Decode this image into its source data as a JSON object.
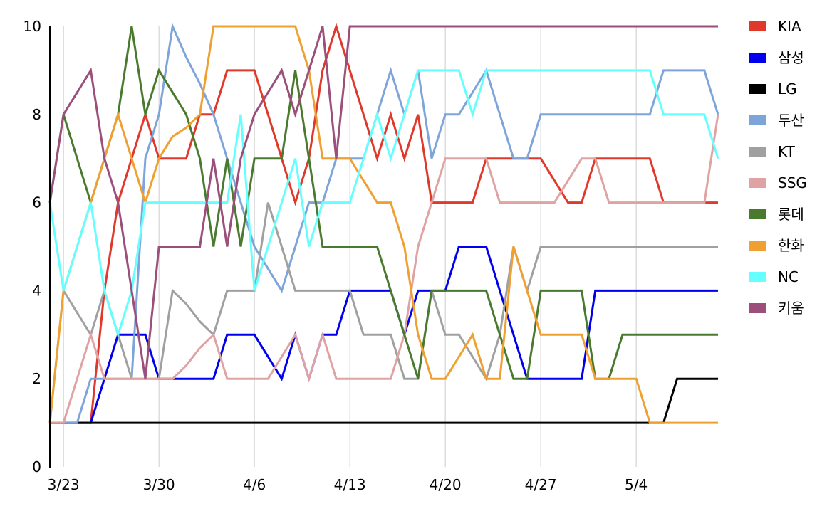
{
  "chart_data": {
    "type": "line",
    "title": "",
    "xlabel": "",
    "ylabel": "",
    "ylim": [
      0,
      10
    ],
    "yticks": [
      0,
      2,
      4,
      6,
      8,
      10
    ],
    "x_tick_labels": [
      "3/23",
      "3/30",
      "4/6",
      "4/13",
      "4/20",
      "4/27",
      "5/4"
    ],
    "x_tick_index": [
      1,
      8,
      15,
      22,
      29,
      36,
      43
    ],
    "x": [
      "3/22",
      "3/23",
      "3/24",
      "3/25",
      "3/26",
      "3/27",
      "3/28",
      "3/29",
      "3/30",
      "3/31",
      "4/1",
      "4/2",
      "4/3",
      "4/4",
      "4/5",
      "4/6",
      "4/7",
      "4/8",
      "4/9",
      "4/10",
      "4/11",
      "4/12",
      "4/13",
      "4/14",
      "4/15",
      "4/16",
      "4/17",
      "4/18",
      "4/19",
      "4/20",
      "4/21",
      "4/22",
      "4/23",
      "4/24",
      "4/25",
      "4/26",
      "4/27",
      "4/28",
      "4/29",
      "4/30",
      "5/1",
      "5/2",
      "5/3",
      "5/4",
      "5/5",
      "5/6",
      "5/7",
      "5/8",
      "5/9",
      "5/10"
    ],
    "grid": "vertical",
    "legend_position": "right",
    "series": [
      {
        "name": "KIA",
        "color": "#e0392b",
        "values": [
          1,
          1,
          1,
          1,
          4,
          6,
          7,
          8,
          7,
          7,
          7,
          8,
          8,
          9,
          9,
          9,
          8,
          7,
          6,
          7,
          9,
          10,
          9,
          8,
          7,
          8,
          7,
          8,
          6,
          6,
          6,
          6,
          7,
          7,
          7,
          7,
          7,
          6.5,
          6,
          6,
          7,
          7,
          7,
          7,
          7,
          6,
          6,
          6,
          6,
          6
        ]
      },
      {
        "name": "삼성",
        "color": "#0000ee",
        "values": [
          1,
          1,
          1,
          1,
          2,
          3,
          3,
          3,
          2,
          2,
          2,
          2,
          2,
          3,
          3,
          3,
          2.5,
          2,
          3,
          2,
          3,
          3,
          4,
          4,
          4,
          4,
          3,
          4,
          4,
          4,
          5,
          5,
          5,
          4,
          3,
          2,
          2,
          2,
          2,
          2,
          4,
          4,
          4,
          4,
          4,
          4,
          4,
          4,
          4,
          4
        ]
      },
      {
        "name": "LG",
        "color": "#000000",
        "values": [
          1,
          1,
          1,
          1,
          1,
          1,
          1,
          1,
          1,
          1,
          1,
          1,
          1,
          1,
          1,
          1,
          1,
          1,
          1,
          1,
          1,
          1,
          1,
          1,
          1,
          1,
          1,
          1,
          1,
          1,
          1,
          1,
          1,
          1,
          1,
          1,
          1,
          1,
          1,
          1,
          1,
          1,
          1,
          1,
          1,
          1,
          2,
          2,
          2,
          2
        ]
      },
      {
        "name": "두산",
        "color": "#7ea5d9",
        "values": [
          1,
          1,
          1,
          2,
          2,
          2,
          2,
          7,
          8,
          10,
          9.3,
          8.7,
          8,
          7,
          6,
          5,
          4.5,
          4,
          5,
          6,
          6,
          7,
          7,
          7,
          8,
          9,
          8,
          9,
          7,
          8,
          8,
          8.5,
          9,
          8,
          7,
          7,
          8,
          8,
          8,
          8,
          8,
          8,
          8,
          8,
          8,
          9,
          9,
          9,
          9,
          8
        ]
      },
      {
        "name": "KT",
        "color": "#a0a0a0",
        "values": [
          1,
          4,
          3.5,
          3,
          4,
          3,
          2,
          2,
          2,
          4,
          3.7,
          3.3,
          3,
          4,
          4,
          4,
          6,
          5,
          4,
          4,
          4,
          4,
          4,
          3,
          3,
          3,
          2,
          2,
          4,
          3,
          3,
          2.5,
          2,
          3,
          5,
          4,
          5,
          5,
          5,
          5,
          5,
          5,
          5,
          5,
          5,
          5,
          5,
          5,
          5,
          5
        ]
      },
      {
        "name": "SSG",
        "color": "#e0a3a3",
        "values": [
          1,
          1,
          2,
          3,
          2,
          2,
          2,
          2,
          2,
          2,
          2.3,
          2.7,
          3,
          2,
          2,
          2,
          2,
          2.5,
          3,
          2,
          3,
          2,
          2,
          2,
          2,
          2,
          3,
          5,
          6,
          7,
          7,
          7,
          7,
          6,
          6,
          6,
          6,
          6,
          6.5,
          7,
          7,
          6,
          6,
          6,
          6,
          6,
          6,
          6,
          6,
          8
        ]
      },
      {
        "name": "롯데",
        "color": "#4a7a2e",
        "values": [
          6,
          8,
          7,
          6,
          7,
          8,
          10,
          8,
          9,
          8.5,
          8,
          7,
          5,
          7,
          5,
          7,
          7,
          7,
          9,
          7,
          5,
          5,
          5,
          5,
          5,
          4,
          3,
          2,
          4,
          4,
          4,
          4,
          4,
          3,
          2,
          2,
          4,
          4,
          4,
          4,
          2,
          2,
          3,
          3,
          3,
          3,
          3,
          3,
          3,
          3
        ]
      },
      {
        "name": "한화",
        "color": "#f0a030",
        "values": [
          1,
          4,
          5,
          6,
          7,
          8,
          7,
          6,
          7,
          7.5,
          7.7,
          8,
          10,
          10,
          10,
          10,
          10,
          10,
          10,
          9,
          7,
          7,
          7,
          6.5,
          6,
          6,
          5,
          3,
          2,
          2,
          2.5,
          3,
          2,
          2,
          5,
          4,
          3,
          3,
          3,
          3,
          2,
          2,
          2,
          2,
          1,
          1,
          1,
          1,
          1,
          1
        ]
      },
      {
        "name": "NC",
        "color": "#66ffff",
        "values": [
          6,
          4,
          5,
          6,
          4,
          3,
          4,
          6,
          6,
          6,
          6,
          6,
          6,
          6,
          8,
          4,
          5,
          6,
          7,
          5,
          6,
          6,
          6,
          7,
          8,
          7,
          8,
          9,
          9,
          9,
          9,
          8,
          9,
          9,
          9,
          9,
          9,
          9,
          9,
          9,
          9,
          9,
          9,
          9,
          9,
          8,
          8,
          8,
          8,
          7
        ]
      },
      {
        "name": "키움",
        "color": "#9b4f7a",
        "values": [
          6,
          8,
          8.5,
          9,
          7,
          6,
          4,
          2,
          5,
          5,
          5,
          5,
          7,
          5,
          7,
          8,
          8.5,
          9,
          8,
          9,
          10,
          7,
          10,
          10,
          10,
          10,
          10,
          10,
          10,
          10,
          10,
          10,
          10,
          10,
          10,
          10,
          10,
          10,
          10,
          10,
          10,
          10,
          10,
          10,
          10,
          10,
          10,
          10,
          10,
          10
        ]
      }
    ]
  }
}
